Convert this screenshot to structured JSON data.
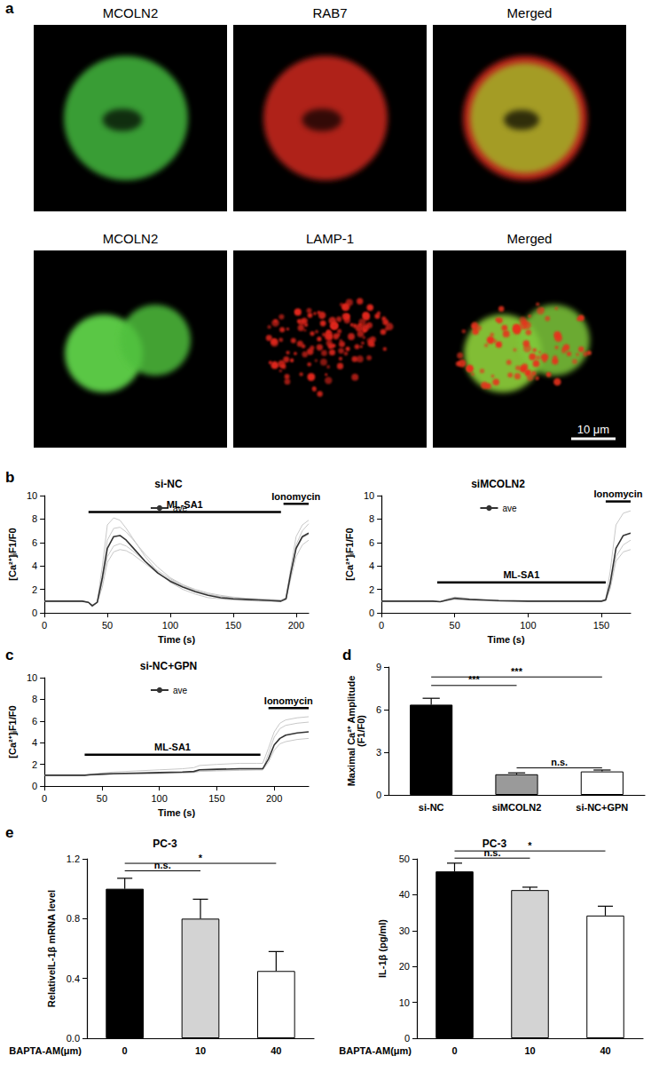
{
  "images": {
    "panel": "a",
    "rows": [
      {
        "titles": [
          "MCOLN2",
          "RAB7",
          "Merged"
        ]
      },
      {
        "titles": [
          "MCOLN2",
          "LAMP-1",
          "Merged"
        ]
      }
    ],
    "scale_bar": "10 μm"
  },
  "chart_data": [
    {
      "type": "line",
      "panel": "b",
      "title": "si-NC",
      "xlabel": "Time (s)",
      "ylabel": "[Ca²⁺]ᵢF1/F0",
      "x": [
        0,
        10,
        20,
        30,
        35,
        38,
        42,
        46,
        50,
        55,
        60,
        65,
        70,
        80,
        90,
        100,
        110,
        120,
        130,
        140,
        150,
        160,
        170,
        180,
        188,
        192,
        196,
        200,
        205,
        210
      ],
      "series": [
        {
          "color": "#c8c8c8",
          "values": [
            1,
            1,
            1,
            1,
            0.9,
            0.5,
            1.0,
            4.0,
            7.5,
            8.1,
            7.9,
            7.2,
            6.4,
            4.8,
            3.5,
            2.6,
            2.0,
            1.6,
            1.3,
            1.2,
            1.1,
            1.05,
            1.0,
            1.0,
            1.0,
            1.3,
            4.0,
            6.5,
            7.5,
            7.9
          ]
        },
        {
          "color": "#c8c8c8",
          "values": [
            1,
            1,
            1,
            1,
            0.9,
            0.6,
            0.9,
            3.2,
            6.2,
            7.2,
            7.3,
            6.9,
            6.3,
            5.0,
            3.9,
            3.0,
            2.4,
            1.9,
            1.6,
            1.4,
            1.25,
            1.15,
            1.1,
            1.05,
            1.0,
            1.2,
            3.3,
            5.4,
            6.4,
            6.7
          ]
        },
        {
          "color": "#c8c8c8",
          "values": [
            1,
            1,
            1,
            1,
            0.9,
            0.6,
            0.9,
            2.6,
            4.8,
            5.7,
            5.9,
            5.7,
            5.3,
            4.4,
            3.6,
            2.9,
            2.4,
            2.0,
            1.7,
            1.5,
            1.35,
            1.25,
            1.2,
            1.15,
            1.1,
            1.2,
            3.0,
            4.8,
            5.8,
            6.2
          ]
        },
        {
          "color": "#c8c8c8",
          "values": [
            1,
            1,
            1,
            1,
            0.9,
            0.7,
            0.9,
            2.2,
            4.3,
            5.2,
            5.4,
            5.3,
            5.0,
            4.2,
            3.4,
            2.8,
            2.3,
            1.9,
            1.6,
            1.4,
            1.3,
            1.2,
            1.15,
            1.1,
            1.1,
            1.3,
            3.6,
            5.8,
            7.0,
            7.6
          ]
        },
        {
          "name": "ave",
          "color": "#333333",
          "values": [
            1,
            1,
            1,
            1,
            0.9,
            0.6,
            0.9,
            3.0,
            5.5,
            6.5,
            6.6,
            6.2,
            5.6,
            4.4,
            3.4,
            2.7,
            2.2,
            1.8,
            1.5,
            1.3,
            1.2,
            1.15,
            1.1,
            1.05,
            1.0,
            1.2,
            3.5,
            5.5,
            6.5,
            6.8
          ]
        }
      ],
      "xlim": [
        0,
        210
      ],
      "xticks": [
        0,
        50,
        100,
        150,
        200
      ],
      "ylim": [
        0,
        10
      ],
      "yticks": [
        0,
        2,
        4,
        6,
        8,
        10
      ],
      "legend": "top",
      "annotations": [
        {
          "text": "ML-SA1",
          "x": [
            35,
            188
          ],
          "y": 8.6
        },
        {
          "text": "Ionomycin",
          "x": [
            190,
            210
          ],
          "y": 9.3
        }
      ]
    },
    {
      "type": "line",
      "title": "siMCOLN2",
      "xlabel": "Time (s)",
      "ylabel": "[Ca²⁺]ᵢF1/F0",
      "x": [
        0,
        20,
        35,
        40,
        45,
        50,
        55,
        60,
        70,
        80,
        100,
        120,
        140,
        150,
        153,
        156,
        160,
        165,
        170
      ],
      "series": [
        {
          "color": "#c8c8c8",
          "values": [
            1,
            1,
            1,
            0.95,
            1.2,
            1.35,
            1.3,
            1.2,
            1.1,
            1.05,
            1.0,
            1.0,
            1.0,
            1.0,
            1.2,
            3.5,
            7.5,
            8.5,
            8.7
          ]
        },
        {
          "color": "#c8c8c8",
          "values": [
            1,
            1,
            1,
            0.95,
            1.05,
            1.15,
            1.1,
            1.1,
            1.05,
            1.0,
            1.0,
            1.0,
            1.0,
            1.0,
            1.1,
            2.2,
            4.8,
            5.8,
            6.2
          ]
        },
        {
          "color": "#c8c8c8",
          "values": [
            1,
            1,
            1,
            0.95,
            1.1,
            1.2,
            1.2,
            1.1,
            1.05,
            1.0,
            1.0,
            1.0,
            0.95,
            0.95,
            1.05,
            2.0,
            4.4,
            5.2,
            5.4
          ]
        },
        {
          "name": "ave",
          "color": "#333333",
          "values": [
            1,
            1,
            1,
            0.95,
            1.1,
            1.25,
            1.2,
            1.15,
            1.1,
            1.05,
            1.0,
            1.0,
            1.0,
            1.0,
            1.1,
            2.5,
            5.5,
            6.6,
            6.8
          ]
        }
      ],
      "xlim": [
        0,
        170
      ],
      "xticks": [
        0,
        50,
        100,
        150
      ],
      "ylim": [
        0,
        10
      ],
      "yticks": [
        0,
        2,
        4,
        6,
        8,
        10
      ],
      "legend": "top",
      "annotations": [
        {
          "text": "ML-SA1",
          "x": [
            38,
            153
          ],
          "y": 2.6
        },
        {
          "text": "Ionomycin",
          "x": [
            153,
            170
          ],
          "y": 9.5
        }
      ]
    },
    {
      "type": "line",
      "panel": "c",
      "title": "si-NC+GPN",
      "xlabel": "Time (s)",
      "ylabel": "[Ca²⁺]ᵢF1/F0",
      "x": [
        0,
        20,
        35,
        40,
        50,
        60,
        80,
        100,
        120,
        130,
        135,
        150,
        170,
        185,
        190,
        195,
        200,
        205,
        210,
        220,
        230
      ],
      "series": [
        {
          "color": "#c8c8c8",
          "values": [
            1,
            1,
            1,
            1.1,
            1.2,
            1.3,
            1.4,
            1.5,
            1.6,
            1.7,
            1.9,
            2.0,
            2.1,
            2.1,
            2.1,
            3.5,
            5.0,
            5.8,
            6.1,
            6.3,
            6.4
          ]
        },
        {
          "color": "#c8c8c8",
          "values": [
            1,
            1,
            1,
            1.0,
            1.05,
            1.1,
            1.1,
            1.15,
            1.2,
            1.25,
            1.35,
            1.4,
            1.45,
            1.5,
            1.5,
            2.2,
            3.3,
            3.9,
            4.1,
            4.3,
            4.4
          ]
        },
        {
          "color": "#c8c8c8",
          "values": [
            1,
            1,
            1,
            1.05,
            1.1,
            1.1,
            1.15,
            1.2,
            1.25,
            1.3,
            1.4,
            1.45,
            1.5,
            1.5,
            1.5,
            3.0,
            4.5,
            5.3,
            5.6,
            5.8,
            5.9
          ]
        },
        {
          "name": "ave",
          "color": "#333333",
          "values": [
            1,
            1,
            1,
            1.05,
            1.1,
            1.15,
            1.2,
            1.25,
            1.3,
            1.35,
            1.5,
            1.55,
            1.6,
            1.6,
            1.6,
            2.5,
            3.8,
            4.4,
            4.7,
            4.9,
            5.0
          ]
        }
      ],
      "xlim": [
        0,
        230
      ],
      "xticks": [
        0,
        50,
        100,
        150,
        200
      ],
      "ylim": [
        0,
        10
      ],
      "yticks": [
        0,
        2,
        4,
        6,
        8,
        10
      ],
      "legend": "top",
      "annotations": [
        {
          "text": "ML-SA1",
          "x": [
            35,
            188
          ],
          "y": 2.9
        },
        {
          "text": "Ionomycin",
          "x": [
            195,
            230
          ],
          "y": 7.2
        }
      ]
    },
    {
      "type": "bar",
      "panel": "d",
      "ylabel": "Maximal Ca²⁺ Amplitude\n(F1/F0)",
      "categories": [
        "si-NC",
        "siMCOLN2",
        "si-NC+GPN"
      ],
      "values": [
        6.35,
        1.45,
        1.65
      ],
      "errors": [
        0.45,
        0.1,
        0.1
      ],
      "colors": [
        "#000000",
        "#9a9a9a",
        "#ffffff"
      ],
      "ylim": [
        0,
        9
      ],
      "yticks": [
        0,
        3,
        6,
        9
      ],
      "significance": [
        {
          "from": "si-NC",
          "to": "siMCOLN2",
          "label": "***",
          "y": 7.7
        },
        {
          "from": "si-NC",
          "to": "si-NC+GPN",
          "label": "***",
          "y": 8.3
        },
        {
          "from": "siMCOLN2",
          "to": "si-NC+GPN",
          "label": "n.s.",
          "y": 1.9
        }
      ]
    },
    {
      "type": "bar",
      "panel": "e",
      "title": "PC-3",
      "ylabel": "RelativeIL-1β mRNA level",
      "xlabel": "BAPTA-AM(μm)",
      "categories": [
        "0",
        "10",
        "40"
      ],
      "values": [
        1.0,
        0.8,
        0.45
      ],
      "errors": [
        0.07,
        0.13,
        0.13
      ],
      "colors": [
        "#000000",
        "#d3d3d3",
        "#ffffff"
      ],
      "ylim": [
        0,
        1.2
      ],
      "yticks": [
        {
          "value": 0,
          "label": "0.0"
        },
        0.4,
        0.8,
        1.2
      ],
      "significance": [
        {
          "from": "0",
          "to": "10",
          "label": "n.s.",
          "y": 1.12
        },
        {
          "from": "0",
          "to": "40",
          "label": "*",
          "y": 1.17
        }
      ]
    },
    {
      "type": "bar",
      "title": "PC-3",
      "ylabel": "IL-1β (pg/ml)",
      "xlabel": "BAPTA-AM(μm)",
      "categories": [
        "0",
        "10",
        "40"
      ],
      "values": [
        46.5,
        41.3,
        34.2
      ],
      "errors": [
        2.3,
        0.8,
        2.6
      ],
      "colors": [
        "#000000",
        "#d3d3d3",
        "#ffffff"
      ],
      "ylim": [
        0,
        50
      ],
      "yticks": [
        0,
        10,
        20,
        30,
        40,
        50
      ],
      "significance": [
        {
          "from": "0",
          "to": "10",
          "label": "n.s.",
          "y": 50.2
        },
        {
          "from": "0",
          "to": "40",
          "label": "*",
          "y": 52.2
        }
      ]
    }
  ]
}
